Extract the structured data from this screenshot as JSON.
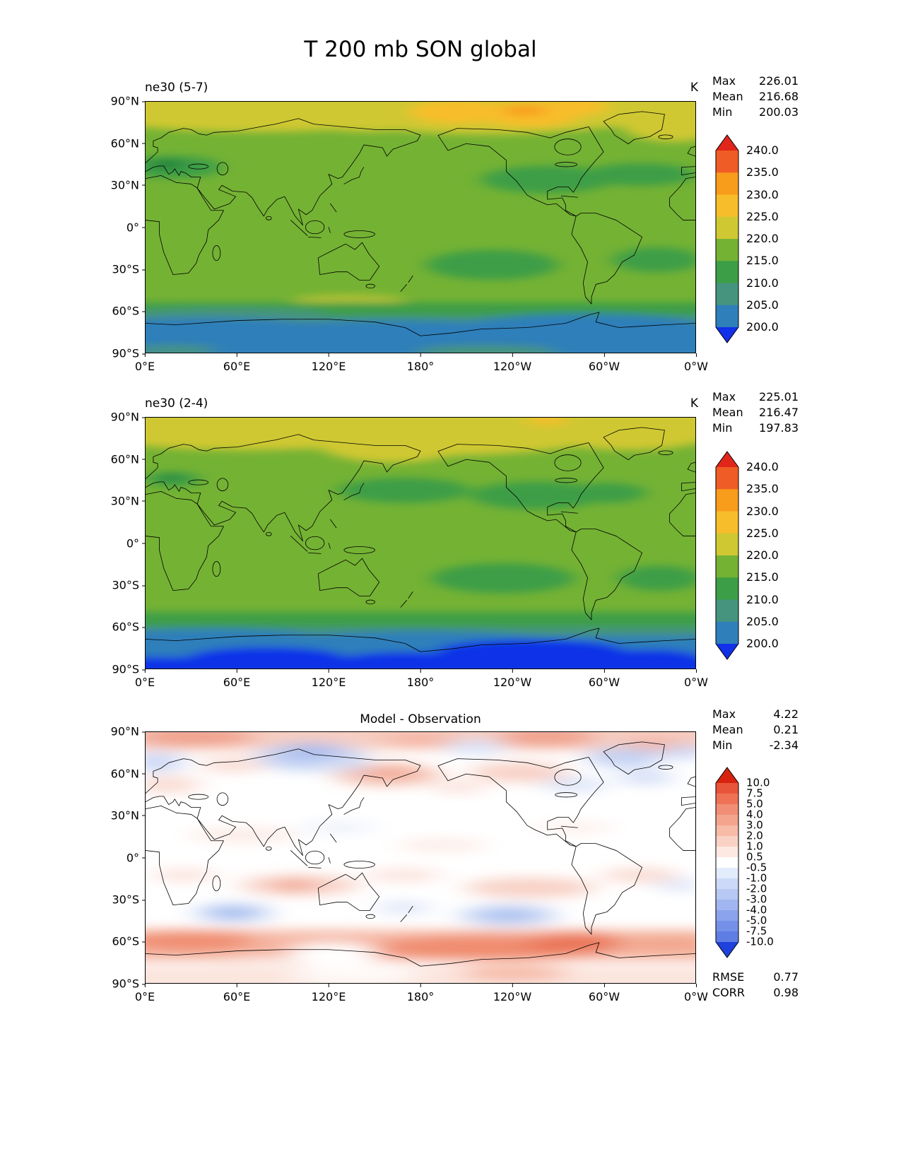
{
  "chart_data": {
    "type": "heatmap",
    "subtype": "filled-contour latitude-longitude global maps, 3 stacked panels",
    "title": "T 200 mb SON global",
    "variable": "T",
    "pressure_level": "200 mb",
    "season": "SON",
    "region": "global",
    "grid": false,
    "x_ticks": [
      "0°E",
      "60°E",
      "120°E",
      "180°",
      "120°W",
      "60°W",
      "0°W"
    ],
    "y_ticks": [
      "90°N",
      "60°N",
      "30°N",
      "0°",
      "30°S",
      "60°S",
      "90°S"
    ],
    "panels": [
      {
        "id": "top",
        "label": "ne30 (5-7)",
        "units": "K",
        "stats": [
          {
            "name": "Max",
            "value": "226.01"
          },
          {
            "name": "Mean",
            "value": "216.68"
          },
          {
            "name": "Min",
            "value": "200.03"
          }
        ],
        "colorbar_levels": [
          "240.0",
          "235.0",
          "230.0",
          "225.0",
          "220.0",
          "215.0",
          "210.0",
          "205.0",
          "200.0"
        ]
      },
      {
        "id": "middle",
        "label": "ne30 (2-4)",
        "units": "K",
        "stats": [
          {
            "name": "Max",
            "value": "225.01"
          },
          {
            "name": "Mean",
            "value": "216.47"
          },
          {
            "name": "Min",
            "value": "197.83"
          }
        ],
        "colorbar_levels": [
          "240.0",
          "235.0",
          "230.0",
          "225.0",
          "220.0",
          "215.0",
          "210.0",
          "205.0",
          "200.0"
        ]
      },
      {
        "id": "bottom",
        "label": "Model - Observation",
        "stats": [
          {
            "name": "Max",
            "value": "4.22"
          },
          {
            "name": "Mean",
            "value": "0.21"
          },
          {
            "name": "Min",
            "value": "-2.34"
          }
        ],
        "colorbar_levels": [
          "10.0",
          "7.5",
          "5.0",
          "4.0",
          "3.0",
          "2.0",
          "1.0",
          "0.5",
          "-0.5",
          "-1.0",
          "-2.0",
          "-3.0",
          "-4.0",
          "-5.0",
          "-7.5",
          "-10.0"
        ],
        "extra_stats": [
          {
            "name": "RMSE",
            "value": "0.77"
          },
          {
            "name": "CORR",
            "value": "0.98"
          }
        ]
      }
    ],
    "temperature_colorbar": {
      "units": "K",
      "colors": [
        "#e1251b",
        "#ef5c25",
        "#f89c1c",
        "#f8bd2b",
        "#cfc832",
        "#74b234",
        "#3c9e47",
        "#46947e",
        "#2f7fba",
        "#1130e8"
      ]
    },
    "difference_colorbar": {
      "colors": [
        "#d6220f",
        "#e8543a",
        "#ef7257",
        "#f28e76",
        "#f4a48d",
        "#f7bba8",
        "#fad2c5",
        "#fde9e2",
        "#ffffff",
        "#e3ecfb",
        "#cdd9f8",
        "#b7c8f4",
        "#a1b5f0",
        "#8ba3ec",
        "#7590e8",
        "#5f7ee4",
        "#1f41dc"
      ]
    }
  }
}
